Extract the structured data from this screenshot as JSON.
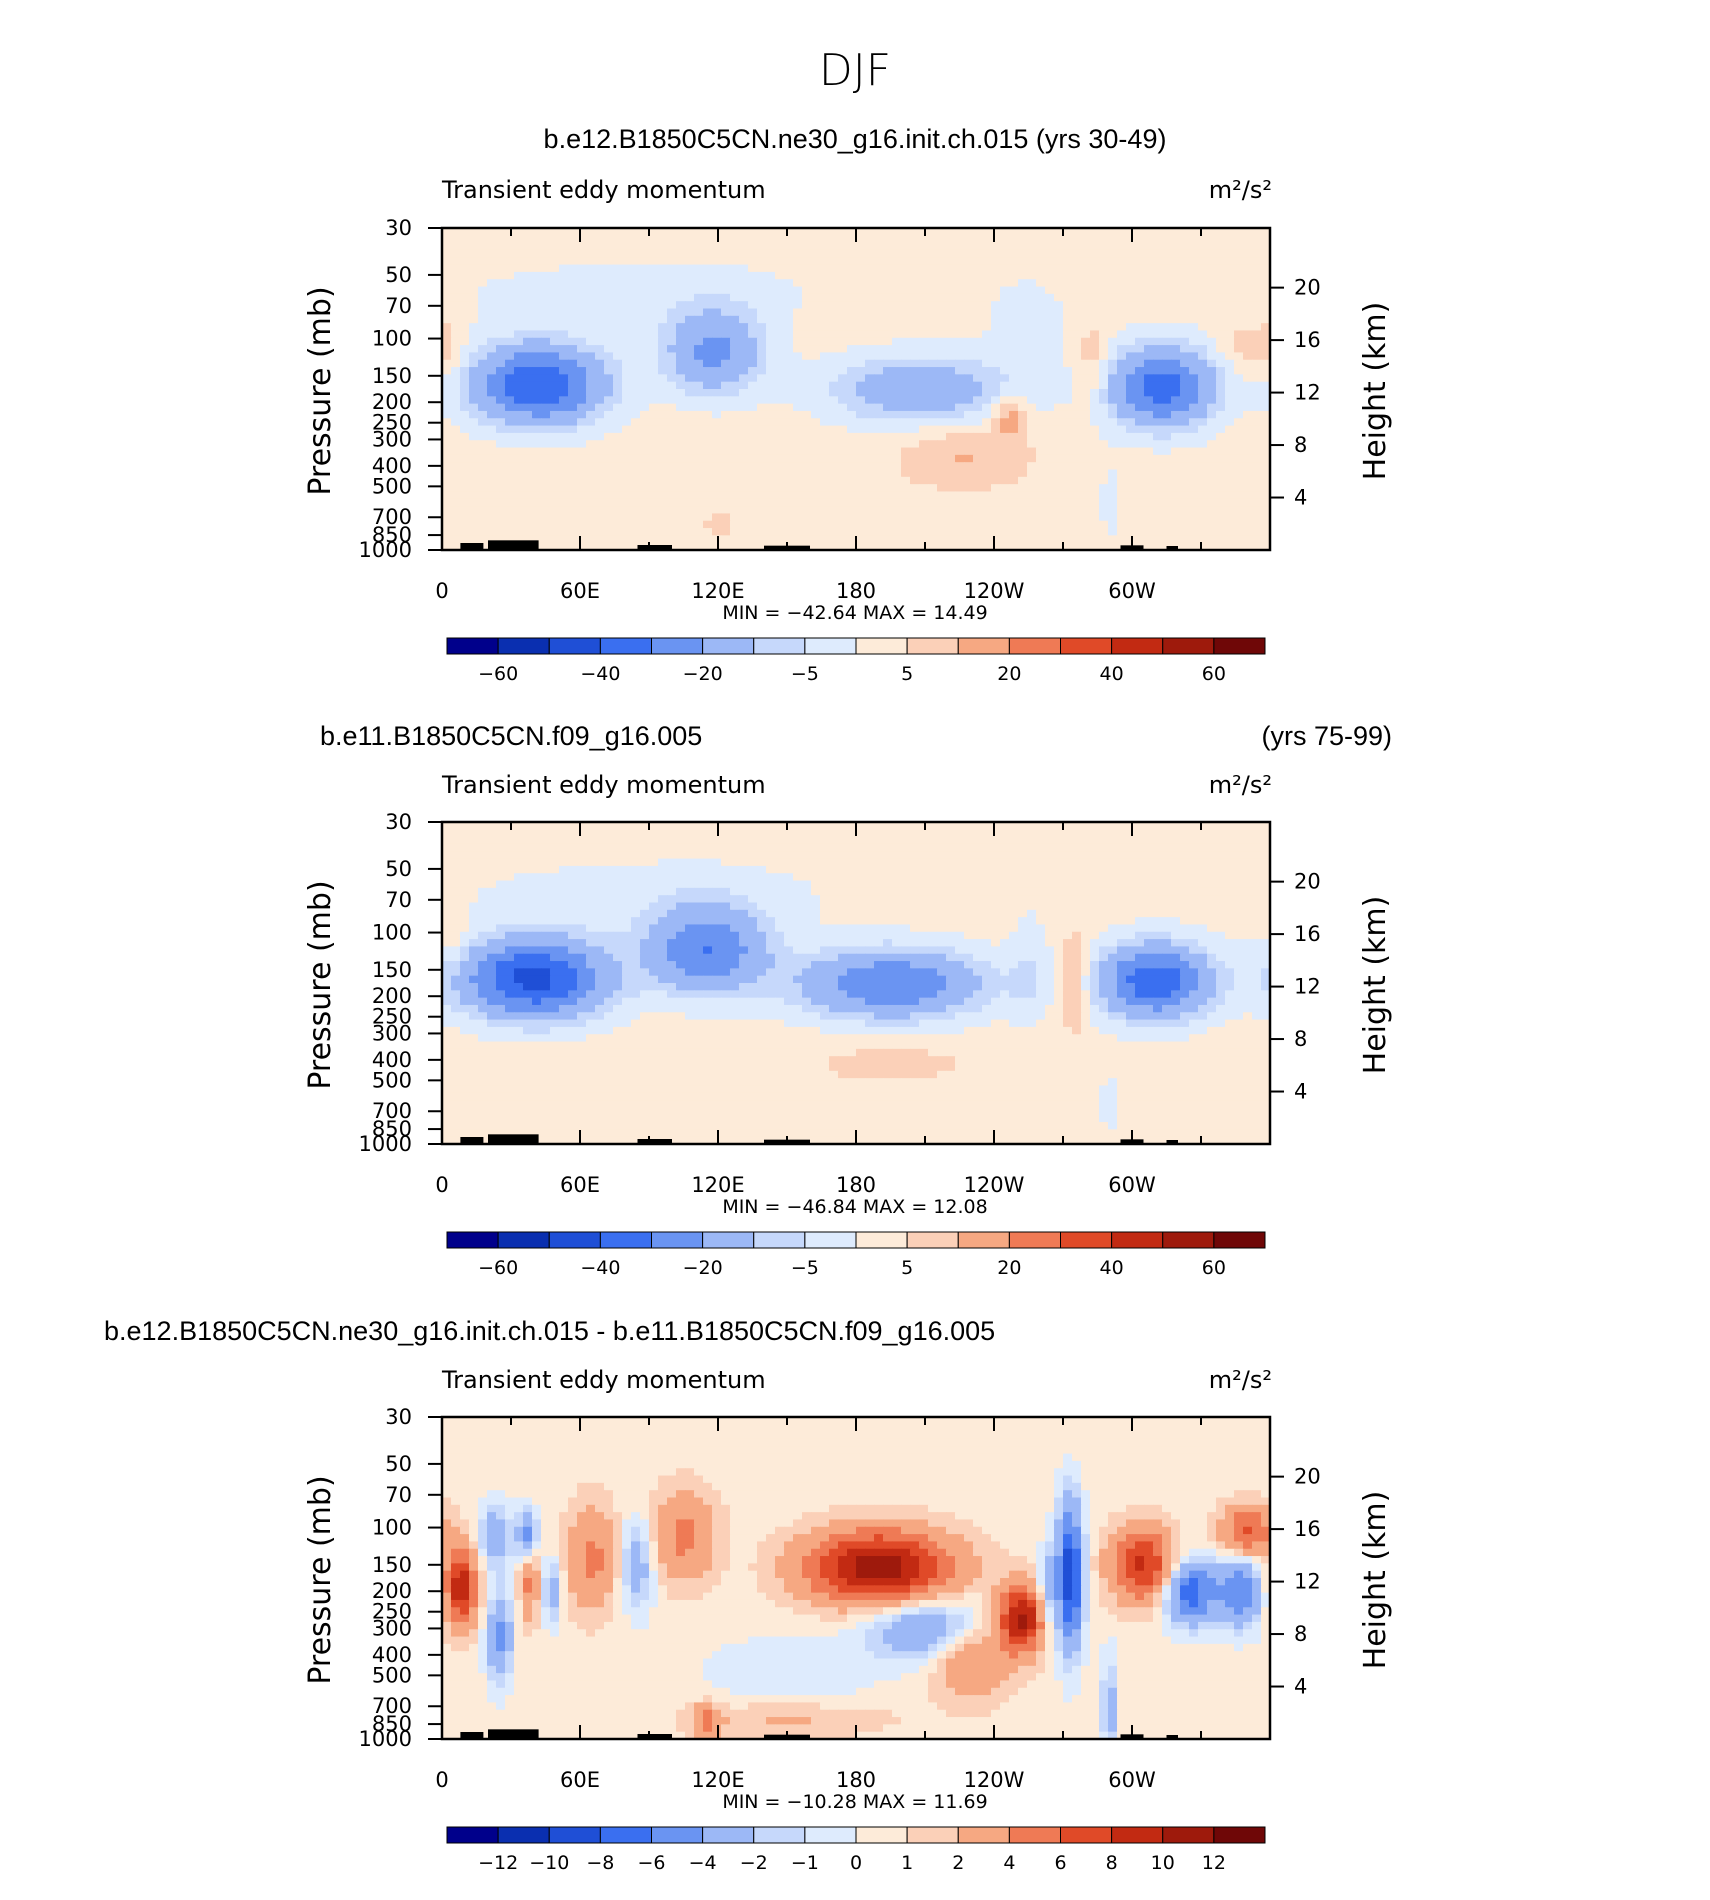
{
  "main_title": "DJF",
  "palette": [
    "#00008b",
    "#0a2fb0",
    "#1f4fd6",
    "#3a6ff0",
    "#6a94f2",
    "#9cb8f6",
    "#c6d8fb",
    "#deebfd",
    "#fdebd9",
    "#fbd0b8",
    "#f6a882",
    "#ef7a55",
    "#e04a28",
    "#c22a12",
    "#9e1a0c",
    "#6f0707"
  ],
  "chart_data": [
    {
      "type": "contour",
      "id": "model",
      "title": "b.e12.B1850C5CN.ne30_g16.init.ch.015 (yrs 30-49)",
      "title_right": "",
      "field_label": "Transient eddy momentum",
      "units_label": "m²/s²",
      "ylabel_left": "Pressure (mb)",
      "ylabel_right": "Height (km)",
      "pressure_levels": [
        30,
        50,
        70,
        100,
        150,
        200,
        250,
        300,
        400,
        500,
        700,
        850,
        1000
      ],
      "height_ticks": [
        20,
        16,
        12,
        8,
        4
      ],
      "x_ticks": [
        "0",
        "60E",
        "120E",
        "180",
        "120W",
        "60W"
      ],
      "x_tick_lon": [
        0,
        60,
        120,
        180,
        240,
        300
      ],
      "stats": "MIN = −42.64   MAX =  14.49",
      "min": -42.64,
      "max": 14.49,
      "levels": [
        -70,
        -60,
        -50,
        -40,
        -30,
        -20,
        -10,
        -5,
        0,
        5,
        10,
        20,
        30,
        40,
        50,
        60
      ],
      "colorbar_labels": [
        "−60",
        "−40",
        "−20",
        "−5",
        "5",
        "20",
        "40",
        "60"
      ],
      "blobs": [
        {
          "lon": 42,
          "p": 165,
          "amp": -42,
          "slon": 20,
          "sp": 0.3
        },
        {
          "lon": 118,
          "p": 115,
          "amp": -25,
          "slon": 15,
          "sp": 0.32
        },
        {
          "lon": 207,
          "p": 175,
          "amp": -20,
          "slon": 27,
          "sp": 0.26
        },
        {
          "lon": 313,
          "p": 170,
          "amp": -38,
          "slon": 16,
          "sp": 0.3
        },
        {
          "lon": 85,
          "p": 60,
          "amp": -4,
          "slon": 70,
          "sp": 0.3
        },
        {
          "lon": 255,
          "p": 90,
          "amp": -4,
          "slon": 15,
          "sp": 0.5
        },
        {
          "lon": 3,
          "p": 110,
          "amp": 6,
          "slon": 4,
          "sp": 0.25
        },
        {
          "lon": 247,
          "p": 230,
          "amp": 12,
          "slon": 5,
          "sp": 0.18
        },
        {
          "lon": 227,
          "p": 360,
          "amp": 8,
          "slon": 20,
          "sp": 0.25
        },
        {
          "lon": 283,
          "p": 130,
          "amp": 8,
          "slon": 5,
          "sp": 0.3
        },
        {
          "lon": 350,
          "p": 110,
          "amp": 6,
          "slon": 8,
          "sp": 0.2
        },
        {
          "lon": 120,
          "p": 750,
          "amp": 6,
          "slon": 4,
          "sp": 0.1
        },
        {
          "lon": 290,
          "p": 600,
          "amp": -4,
          "slon": 3,
          "sp": 0.4
        }
      ],
      "background": 2.5
    },
    {
      "type": "contour",
      "id": "control",
      "title": "b.e11.B1850C5CN.f09_g16.005",
      "title_right": "(yrs 75-99)",
      "field_label": "Transient eddy momentum",
      "units_label": "m²/s²",
      "ylabel_left": "Pressure (mb)",
      "ylabel_right": "Height (km)",
      "pressure_levels": [
        30,
        50,
        70,
        100,
        150,
        200,
        250,
        300,
        400,
        500,
        700,
        850,
        1000
      ],
      "height_ticks": [
        20,
        16,
        12,
        8,
        4
      ],
      "x_ticks": [
        "0",
        "60E",
        "120E",
        "180",
        "120W",
        "60W"
      ],
      "x_tick_lon": [
        0,
        60,
        120,
        180,
        240,
        300
      ],
      "stats": "MIN = −46.84   MAX =  12.08",
      "min": -46.84,
      "max": 12.08,
      "levels": [
        -70,
        -60,
        -50,
        -40,
        -30,
        -20,
        -10,
        -5,
        0,
        5,
        10,
        20,
        30,
        40,
        50,
        60
      ],
      "colorbar_labels": [
        "−60",
        "−40",
        "−20",
        "−5",
        "5",
        "20",
        "40",
        "60"
      ],
      "blobs": [
        {
          "lon": 40,
          "p": 165,
          "amp": -46,
          "slon": 22,
          "sp": 0.3
        },
        {
          "lon": 115,
          "p": 120,
          "amp": -32,
          "slon": 18,
          "sp": 0.32
        },
        {
          "lon": 195,
          "p": 175,
          "amp": -32,
          "slon": 28,
          "sp": 0.26
        },
        {
          "lon": 310,
          "p": 170,
          "amp": -40,
          "slon": 17,
          "sp": 0.28
        },
        {
          "lon": 90,
          "p": 65,
          "amp": -4,
          "slon": 70,
          "sp": 0.32
        },
        {
          "lon": 255,
          "p": 150,
          "amp": -6,
          "slon": 6,
          "sp": 0.45
        },
        {
          "lon": 275,
          "p": 170,
          "amp": 12,
          "slon": 4,
          "sp": 0.35
        },
        {
          "lon": 5,
          "p": 110,
          "amp": 5,
          "slon": 4,
          "sp": 0.2
        },
        {
          "lon": 195,
          "p": 420,
          "amp": 7,
          "slon": 20,
          "sp": 0.12
        },
        {
          "lon": 290,
          "p": 650,
          "amp": -4,
          "slon": 3,
          "sp": 0.35
        }
      ],
      "background": 2.5
    },
    {
      "type": "contour",
      "id": "difference",
      "title": "b.e12.B1850C5CN.ne30_g16.init.ch.015 - b.e11.B1850C5CN.f09_g16.005",
      "title_right": "",
      "field_label": "Transient eddy momentum",
      "units_label": "m²/s²",
      "ylabel_left": "Pressure (mb)",
      "ylabel_right": "Height (km)",
      "pressure_levels": [
        30,
        50,
        70,
        100,
        150,
        200,
        250,
        300,
        400,
        500,
        700,
        850,
        1000
      ],
      "height_ticks": [
        20,
        16,
        12,
        8,
        4
      ],
      "x_ticks": [
        "0",
        "60E",
        "120E",
        "180",
        "120W",
        "60W"
      ],
      "x_tick_lon": [
        0,
        60,
        120,
        180,
        240,
        300
      ],
      "stats": "MIN = −10.28   MAX =  11.69",
      "min": -10.28,
      "max": 11.69,
      "levels": [
        -14,
        -12,
        -10,
        -8,
        -6,
        -4,
        -2,
        -1,
        0,
        1,
        2,
        4,
        6,
        8,
        10,
        12
      ],
      "colorbar_labels": [
        "−12",
        "−10",
        "−8",
        "−6",
        "−4",
        "−2",
        "−1",
        "0",
        "1",
        "2",
        "4",
        "6",
        "8",
        "10",
        "12"
      ],
      "blobs": [
        {
          "lon": 8,
          "p": 190,
          "amp": 9,
          "slon": 5,
          "sp": 0.3
        },
        {
          "lon": 23,
          "p": 110,
          "amp": -4,
          "slon": 5,
          "sp": 0.25
        },
        {
          "lon": 37,
          "p": 110,
          "amp": -6,
          "slon": 3,
          "sp": 0.2
        },
        {
          "lon": 25,
          "p": 330,
          "amp": -5,
          "slon": 4,
          "sp": 0.35
        },
        {
          "lon": 38,
          "p": 180,
          "amp": 4,
          "slon": 3,
          "sp": 0.3
        },
        {
          "lon": 48,
          "p": 200,
          "amp": -4,
          "slon": 3,
          "sp": 0.25
        },
        {
          "lon": 65,
          "p": 140,
          "amp": 4,
          "slon": 8,
          "sp": 0.4
        },
        {
          "lon": 85,
          "p": 150,
          "amp": -4,
          "slon": 5,
          "sp": 0.35
        },
        {
          "lon": 105,
          "p": 110,
          "amp": 4,
          "slon": 10,
          "sp": 0.35
        },
        {
          "lon": 190,
          "p": 155,
          "amp": 11,
          "slon": 22,
          "sp": 0.28
        },
        {
          "lon": 210,
          "p": 300,
          "amp": -5,
          "slon": 18,
          "sp": 0.25
        },
        {
          "lon": 252,
          "p": 270,
          "amp": 10,
          "slon": 7,
          "sp": 0.25
        },
        {
          "lon": 230,
          "p": 420,
          "amp": 4,
          "slon": 12,
          "sp": 0.3
        },
        {
          "lon": 273,
          "p": 170,
          "amp": -10,
          "slon": 4,
          "sp": 0.55
        },
        {
          "lon": 263,
          "p": 200,
          "amp": -4,
          "slon": 3,
          "sp": 0.3
        },
        {
          "lon": 305,
          "p": 150,
          "amp": 8,
          "slon": 10,
          "sp": 0.28
        },
        {
          "lon": 325,
          "p": 200,
          "amp": -8,
          "slon": 8,
          "sp": 0.25
        },
        {
          "lon": 347,
          "p": 200,
          "amp": -6,
          "slon": 7,
          "sp": 0.28
        },
        {
          "lon": 350,
          "p": 105,
          "amp": 6,
          "slon": 8,
          "sp": 0.2
        },
        {
          "lon": 150,
          "p": 800,
          "amp": 2,
          "slon": 30,
          "sp": 0.15
        },
        {
          "lon": 115,
          "p": 850,
          "amp": 4,
          "slon": 4,
          "sp": 0.15
        },
        {
          "lon": 290,
          "p": 700,
          "amp": -4,
          "slon": 2,
          "sp": 0.4
        },
        {
          "lon": 150,
          "p": 500,
          "amp": -1.5,
          "slon": 25,
          "sp": 0.3
        }
      ],
      "background": 0.5
    }
  ]
}
